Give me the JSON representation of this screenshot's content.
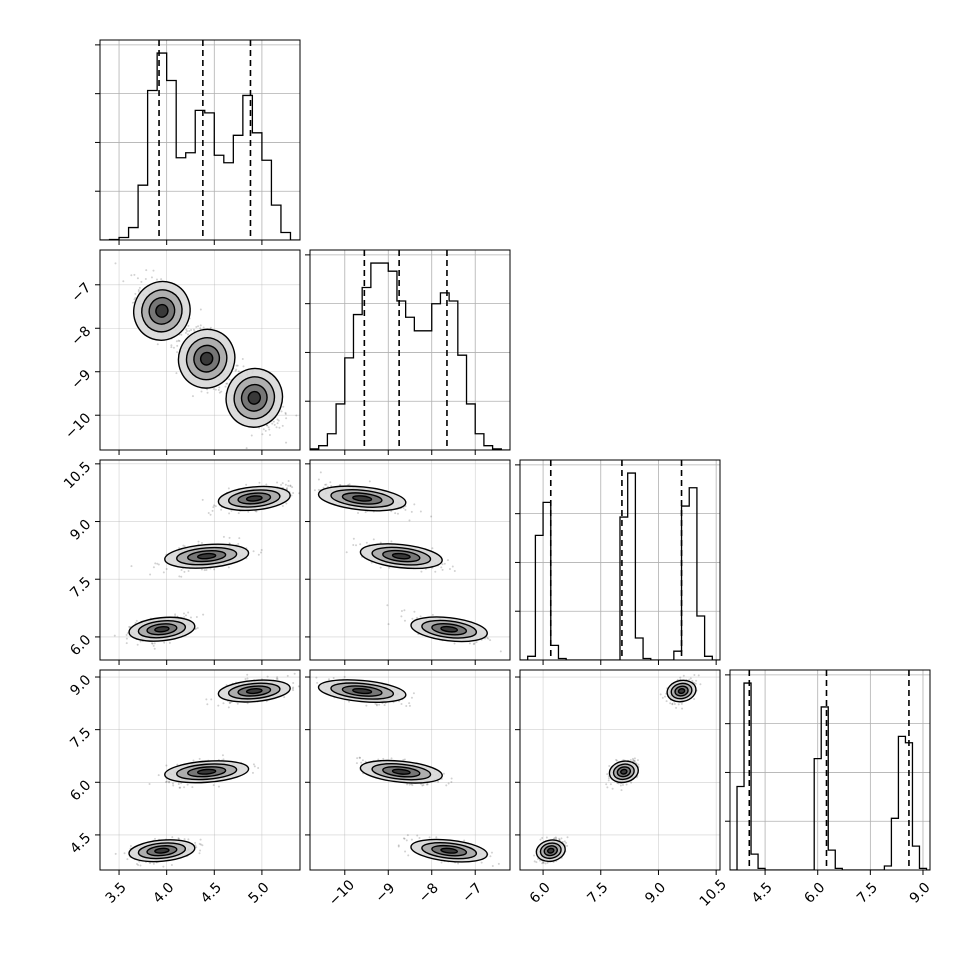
{
  "chart_data": {
    "type": "corner",
    "title": "",
    "grid": true,
    "colors": {
      "frame": "#000000",
      "grid": "#b0b0b0",
      "contour": "#000000",
      "scatter": "#000000"
    },
    "variables": [
      {
        "name": "",
        "range": [
          3.3,
          5.4
        ],
        "ticks": [
          3.5,
          4.0,
          4.5,
          5.0
        ],
        "tick_labels": [
          "3.5",
          "4.0",
          "4.5",
          "5.0"
        ],
        "quantiles": [
          3.92,
          4.38,
          4.88
        ],
        "modes": [
          [
            3.95,
            0.11
          ],
          [
            4.42,
            0.14
          ],
          [
            4.92,
            0.12
          ]
        ]
      },
      {
        "name": "",
        "range": [
          -10.8,
          -6.2
        ],
        "ticks": [
          -10,
          -9,
          -8,
          -7
        ],
        "tick_labels": [
          "−10",
          "−9",
          "−8",
          "−7"
        ],
        "quantiles": [
          -9.55,
          -8.75,
          -7.65
        ],
        "modes": [
          [
            -9.6,
            0.32
          ],
          [
            -8.7,
            0.3
          ],
          [
            -7.6,
            0.28
          ]
        ]
      },
      {
        "name": "",
        "range": [
          5.4,
          10.6
        ],
        "ticks": [
          6.0,
          7.5,
          9.0,
          10.5
        ],
        "tick_labels": [
          "6.0",
          "7.5",
          "9.0",
          "10.5"
        ],
        "quantiles": [
          6.2,
          8.05,
          9.6
        ],
        "modes": [
          [
            6.2,
            0.12
          ],
          [
            8.1,
            0.12
          ],
          [
            9.6,
            0.12
          ]
        ]
      },
      {
        "name": "",
        "range": [
          3.5,
          9.2
        ],
        "ticks": [
          4.5,
          6.0,
          7.5,
          9.0
        ],
        "tick_labels": [
          "4.5",
          "6.0",
          "7.5",
          "9.0"
        ],
        "quantiles": [
          4.05,
          6.25,
          8.6
        ],
        "modes": [
          [
            4.05,
            0.12
          ],
          [
            6.3,
            0.12
          ],
          [
            8.6,
            0.12
          ]
        ]
      }
    ],
    "histograms": [
      {
        "variable": 0,
        "bins": [
          3.3,
          3.4,
          3.5,
          3.6,
          3.7,
          3.8,
          3.9,
          4.0,
          4.1,
          4.2,
          4.3,
          4.4,
          4.5,
          4.6,
          4.7,
          4.8,
          4.9,
          5.0,
          5.1,
          5.2,
          5.3,
          5.4
        ],
        "counts": [
          0,
          1,
          5,
          25,
          110,
          300,
          375,
          320,
          165,
          175,
          260,
          255,
          170,
          155,
          210,
          290,
          215,
          160,
          70,
          15,
          0
        ]
      },
      {
        "variable": 1,
        "bins": [
          -10.8,
          -10.6,
          -10.4,
          -10.2,
          -10.0,
          -9.8,
          -9.6,
          -9.4,
          -9.2,
          -9.0,
          -8.8,
          -8.6,
          -8.4,
          -8.2,
          -8.0,
          -7.8,
          -7.6,
          -7.4,
          -7.2,
          -7.0,
          -6.8,
          -6.6,
          -6.4,
          -6.2
        ],
        "counts": [
          2,
          8,
          30,
          85,
          170,
          250,
          300,
          345,
          345,
          330,
          275,
          245,
          220,
          220,
          270,
          290,
          275,
          175,
          85,
          30,
          8,
          2,
          0
        ]
      },
      {
        "variable": 2,
        "bins": [
          5.4,
          5.6,
          5.8,
          6.0,
          6.2,
          6.4,
          6.6,
          6.8,
          7.0,
          7.2,
          7.4,
          7.6,
          7.8,
          8.0,
          8.2,
          8.4,
          8.6,
          8.8,
          9.0,
          9.2,
          9.4,
          9.6,
          9.8,
          10.0,
          10.2,
          10.4,
          10.6
        ],
        "counts": [
          0,
          5,
          170,
          215,
          20,
          2,
          0,
          0,
          0,
          0,
          0,
          0,
          0,
          195,
          255,
          30,
          2,
          0,
          0,
          0,
          12,
          210,
          235,
          60,
          5,
          0
        ]
      },
      {
        "variable": 3,
        "bins": [
          3.5,
          3.7,
          3.9,
          4.1,
          4.3,
          4.5,
          4.7,
          4.9,
          5.1,
          5.3,
          5.5,
          5.7,
          5.9,
          6.1,
          6.3,
          6.5,
          6.7,
          6.9,
          7.1,
          7.3,
          7.5,
          7.7,
          7.9,
          8.1,
          8.3,
          8.5,
          8.7,
          8.9,
          9.1,
          9.3
        ],
        "counts": [
          0,
          105,
          235,
          20,
          2,
          0,
          0,
          0,
          0,
          0,
          0,
          0,
          140,
          205,
          25,
          2,
          0,
          0,
          0,
          0,
          0,
          0,
          5,
          65,
          168,
          160,
          30,
          2,
          0
        ]
      }
    ],
    "pairs": [
      {
        "x_var": 0,
        "y_var": 1
      },
      {
        "x_var": 0,
        "y_var": 2
      },
      {
        "x_var": 1,
        "y_var": 2
      },
      {
        "x_var": 0,
        "y_var": 3
      },
      {
        "x_var": 1,
        "y_var": 3
      },
      {
        "x_var": 2,
        "y_var": 3
      }
    ]
  }
}
